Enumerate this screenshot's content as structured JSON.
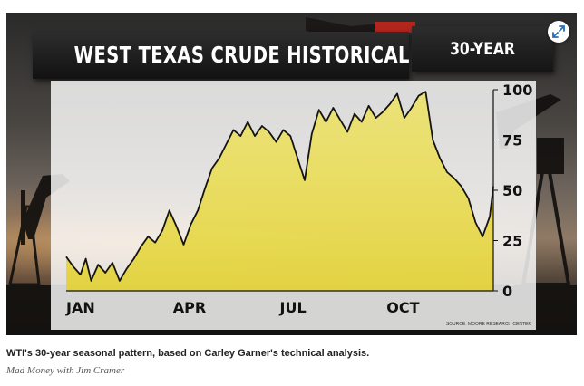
{
  "figure": {
    "title": "WEST TEXAS CRUDE HISTORICAL PATTERNS",
    "period": "30-YEAR",
    "source": "SOURCE: MOORE RESEARCH CENTER",
    "expand_icon": "expand-arrows-icon",
    "colors": {
      "fill": "#f2e65a",
      "line": "#141414",
      "panel": "#f4f4f0",
      "banner": "#1c1c1c",
      "accent": "#b3261e"
    }
  },
  "caption": {
    "text": "WTI's 30-year seasonal pattern, based on Carley Garner's technical analysis.",
    "credit": "Mad Money with Jim Cramer"
  },
  "chart_data": {
    "type": "area",
    "title": "WEST TEXAS CRUDE HISTORICAL PATTERNS",
    "subtitle": "30-YEAR",
    "xlabel": "",
    "ylabel": "",
    "x_tick_labels": [
      "JAN",
      "APR",
      "JUL",
      "OCT"
    ],
    "y_ticks": [
      0,
      25,
      50,
      75,
      100
    ],
    "ylim": [
      0,
      100
    ],
    "xlim": [
      0,
      12
    ],
    "grid": false,
    "legend": "none",
    "y_axis_side": "right",
    "series": [
      {
        "x": [
          0,
          0.2,
          0.4,
          0.55,
          0.7,
          0.9,
          1.1,
          1.3,
          1.5,
          1.7,
          1.9,
          2.1,
          2.3,
          2.5,
          2.7,
          2.9,
          3.1,
          3.3,
          3.5,
          3.7,
          3.9,
          4.1,
          4.3,
          4.5,
          4.7,
          4.9,
          5.1,
          5.3,
          5.5,
          5.7,
          5.9,
          6.1,
          6.3,
          6.5,
          6.7,
          6.9,
          7.1,
          7.3,
          7.5,
          7.7,
          7.9,
          8.1,
          8.3,
          8.5,
          8.7,
          8.9,
          9.1,
          9.3,
          9.5,
          9.7,
          9.9,
          10.1,
          10.3,
          10.5,
          10.7,
          10.9,
          11.1,
          11.3,
          11.5,
          11.7,
          11.9,
          12
        ],
        "values": [
          17,
          12,
          8,
          16,
          5,
          13,
          9,
          14,
          5,
          11,
          16,
          22,
          27,
          24,
          30,
          40,
          32,
          23,
          33,
          40,
          51,
          61,
          66,
          73,
          80,
          77,
          84,
          77,
          82,
          79,
          74,
          80,
          77,
          66,
          55,
          78,
          90,
          84,
          91,
          85,
          79,
          88,
          84,
          92,
          86,
          89,
          93,
          98,
          86,
          91,
          97,
          99,
          75,
          66,
          59,
          56,
          52,
          46,
          34,
          27,
          37,
          52
        ]
      }
    ]
  }
}
